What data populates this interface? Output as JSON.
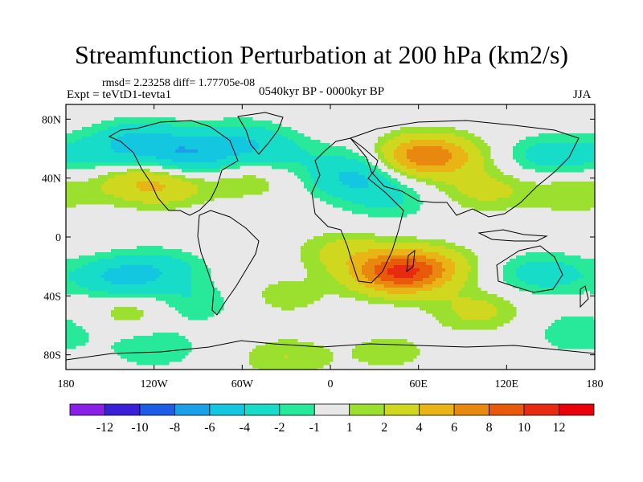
{
  "header": {
    "title": "Streamfunction Perturbation at 200 hPa (km2/s)",
    "stats": "rmsd= 2.23258  diff= 1.77705e-08",
    "experiment": "Expt = teVtD1-tevta1",
    "period": "0540kyr BP - 0000kyr BP",
    "season": "JJA"
  },
  "chart_data": {
    "type": "heatmap",
    "title": "Streamfunction Perturbation at 200 hPa (km2/s)",
    "xlabel": "",
    "ylabel": "",
    "xlim": [
      -180,
      180
    ],
    "ylim": [
      -90,
      90
    ],
    "x_ticks": [
      {
        "value": -180,
        "label": "180"
      },
      {
        "value": -120,
        "label": "120W"
      },
      {
        "value": -60,
        "label": "60W"
      },
      {
        "value": 0,
        "label": "0"
      },
      {
        "value": 60,
        "label": "60E"
      },
      {
        "value": 120,
        "label": "120E"
      },
      {
        "value": 180,
        "label": "180"
      }
    ],
    "y_ticks": [
      {
        "value": 80,
        "label": "80N"
      },
      {
        "value": 40,
        "label": "40N"
      },
      {
        "value": 0,
        "label": "0"
      },
      {
        "value": -40,
        "label": "40S"
      },
      {
        "value": -80,
        "label": "80S"
      }
    ],
    "contour_levels": [
      -12,
      -10,
      -8,
      -6,
      -4,
      -2,
      -1,
      1,
      2,
      4,
      6,
      8,
      10,
      12
    ],
    "colorbar_labels": [
      "-12",
      "-10",
      "-8",
      "-6",
      "-4",
      "-2",
      "-1",
      "1",
      "2",
      "4",
      "6",
      "8",
      "10",
      "12"
    ],
    "colors": [
      "#8a1fe8",
      "#3a1fd8",
      "#1d5de6",
      "#1aa0e6",
      "#14c7e0",
      "#16dcc8",
      "#28e89a",
      "#e8e8e8",
      "#9be02e",
      "#cfd81e",
      "#e8b416",
      "#e8880e",
      "#e85a0a",
      "#e82a10",
      "#e8000a"
    ],
    "anomalies": [
      {
        "lon": -130,
        "lat": 65,
        "value": -4
      },
      {
        "lon": -95,
        "lat": 55,
        "value": -5
      },
      {
        "lon": -60,
        "lat": 65,
        "value": -3
      },
      {
        "lon": -135,
        "lat": 38,
        "value": 2.5
      },
      {
        "lon": -112,
        "lat": 35,
        "value": 3
      },
      {
        "lon": -160,
        "lat": 55,
        "value": -2
      },
      {
        "lon": -55,
        "lat": 40,
        "value": 2
      },
      {
        "lon": -35,
        "lat": 55,
        "value": -2
      },
      {
        "lon": 15,
        "lat": 40,
        "value": -4
      },
      {
        "lon": 30,
        "lat": 55,
        "value": -1.5
      },
      {
        "lon": 55,
        "lat": 55,
        "value": 5
      },
      {
        "lon": 75,
        "lat": 55,
        "value": 4
      },
      {
        "lon": 40,
        "lat": 25,
        "value": -2
      },
      {
        "lon": 105,
        "lat": 32,
        "value": 2.5
      },
      {
        "lon": 150,
        "lat": 55,
        "value": -3
      },
      {
        "lon": 165,
        "lat": 30,
        "value": 2
      },
      {
        "lon": -145,
        "lat": -28,
        "value": -4
      },
      {
        "lon": -115,
        "lat": -22,
        "value": -2.5
      },
      {
        "lon": -95,
        "lat": -45,
        "value": -2
      },
      {
        "lon": -135,
        "lat": -50,
        "value": 2
      },
      {
        "lon": -30,
        "lat": -40,
        "value": 1.5
      },
      {
        "lon": 10,
        "lat": -10,
        "value": 2.5
      },
      {
        "lon": 45,
        "lat": -25,
        "value": 8
      },
      {
        "lon": 65,
        "lat": -20,
        "value": 4
      },
      {
        "lon": 100,
        "lat": -50,
        "value": 2.5
      },
      {
        "lon": 145,
        "lat": -25,
        "value": -3
      },
      {
        "lon": -120,
        "lat": -75,
        "value": -2
      },
      {
        "lon": -30,
        "lat": -82,
        "value": 2
      },
      {
        "lon": 40,
        "lat": -78,
        "value": 1.5
      },
      {
        "lon": 170,
        "lat": -65,
        "value": -2
      }
    ]
  }
}
